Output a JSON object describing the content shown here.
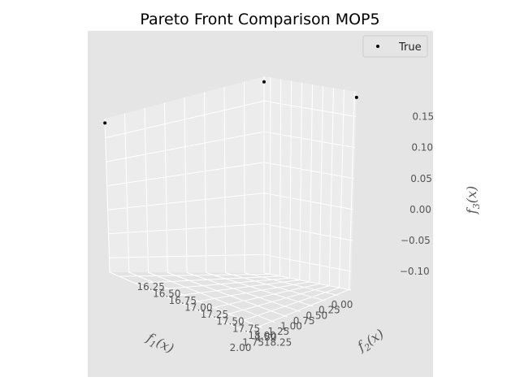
{
  "chart_data": {
    "type": "scatter3d",
    "title": "Pareto Front Comparison MOP5",
    "xlabel": "f_1(x)",
    "ylabel": "f_2(x)",
    "zlabel": "f_3(x)",
    "xlim": [
      0.0,
      2.0
    ],
    "ylim": [
      16.1,
      18.3
    ],
    "zlim": [
      -0.13,
      0.19
    ],
    "x_ticks": [
      "0.00",
      "0.25",
      "0.50",
      "0.75",
      "1.00",
      "1.25",
      "1.50",
      "1.75",
      "2.00"
    ],
    "y_ticks": [
      "16.25",
      "16.50",
      "16.75",
      "17.00",
      "17.25",
      "17.50",
      "17.75",
      "18.00",
      "18.25"
    ],
    "z_ticks": [
      "-0.10",
      "-0.05",
      "0.00",
      "0.05",
      "0.10",
      "0.15"
    ],
    "grid": true,
    "legend_position": "top-right",
    "series": [
      {
        "name": "True",
        "color": "#000000",
        "marker": "o",
        "points": [
          {
            "x": 2.0,
            "y": 16.1,
            "z": 0.181
          },
          {
            "x": 0.0,
            "y": 16.1,
            "z": 0.181
          },
          {
            "x": 0.0,
            "y": 18.3,
            "z": 0.181
          }
        ]
      }
    ]
  },
  "legend": {
    "label": "True"
  }
}
